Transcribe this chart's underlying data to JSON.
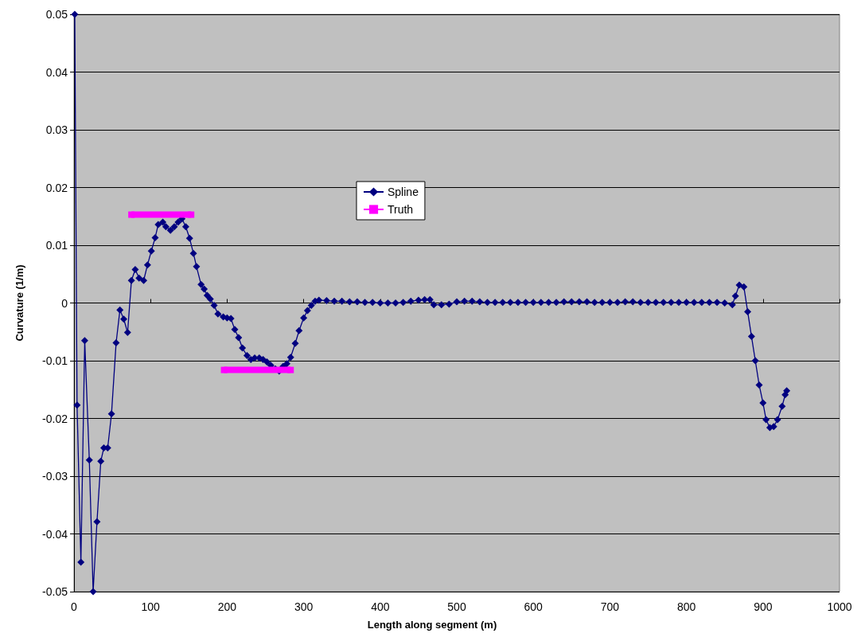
{
  "chart_data": {
    "type": "line",
    "xlabel": "Length along segment (m)",
    "ylabel": "Curvature (1/m)",
    "xlim": [
      0,
      1000
    ],
    "xticks": [
      0,
      100,
      200,
      300,
      400,
      500,
      600,
      700,
      800,
      900,
      1000
    ],
    "ylim": [
      -0.05,
      0.05
    ],
    "yticks": [
      -0.05,
      -0.04,
      -0.03,
      -0.02,
      -0.01,
      0,
      0.01,
      0.02,
      0.03,
      0.04,
      0.05
    ],
    "grid": "y",
    "legend": "top",
    "line_style": "solid",
    "series": [
      {
        "name": "Spline",
        "color": "#000080",
        "marker": "diamond",
        "x": [
          1,
          4,
          9,
          14,
          20,
          25,
          30,
          35,
          39,
          44,
          49,
          55,
          60,
          65,
          70,
          75,
          80,
          85,
          91,
          96,
          101,
          106,
          110,
          116,
          120,
          126,
          131,
          136,
          141,
          146,
          151,
          156,
          160,
          166,
          170,
          174,
          178,
          183,
          188,
          195,
          200,
          205,
          210,
          215,
          220,
          226,
          231,
          236,
          242,
          247,
          252,
          257,
          263,
          268,
          273,
          278,
          283,
          289,
          294,
          300,
          305,
          310,
          315,
          320,
          330,
          340,
          350,
          360,
          370,
          380,
          390,
          400,
          410,
          420,
          430,
          440,
          450,
          458,
          465,
          470,
          480,
          490,
          500,
          510,
          520,
          530,
          540,
          550,
          560,
          570,
          580,
          590,
          600,
          610,
          620,
          630,
          640,
          650,
          660,
          670,
          680,
          690,
          700,
          710,
          720,
          730,
          740,
          750,
          760,
          770,
          780,
          790,
          800,
          810,
          820,
          830,
          840,
          850,
          860,
          864,
          869,
          875,
          880,
          885,
          890,
          895,
          900,
          904,
          909,
          914,
          919,
          925,
          929,
          931
        ],
        "values": [
          0.05,
          -0.0177,
          -0.0449,
          -0.0065,
          -0.0272,
          -0.05,
          -0.0379,
          -0.0274,
          -0.0251,
          -0.0251,
          -0.0192,
          -0.0069,
          -0.0012,
          -0.0028,
          -0.0051,
          0.0039,
          0.0058,
          0.0043,
          0.0039,
          0.0066,
          0.009,
          0.0113,
          0.0136,
          0.014,
          0.0132,
          0.0126,
          0.0132,
          0.014,
          0.0146,
          0.0132,
          0.0112,
          0.0086,
          0.0063,
          0.0032,
          0.0024,
          0.0013,
          0.0007,
          -0.0004,
          -0.0019,
          -0.0024,
          -0.0026,
          -0.0027,
          -0.0046,
          -0.006,
          -0.0078,
          -0.0091,
          -0.0098,
          -0.0095,
          -0.0095,
          -0.0098,
          -0.0102,
          -0.0108,
          -0.0114,
          -0.0118,
          -0.011,
          -0.0105,
          -0.0094,
          -0.007,
          -0.0048,
          -0.0026,
          -0.0013,
          -0.0004,
          0.0003,
          0.0005,
          0.0004,
          0.0003,
          0.0003,
          0.0002,
          0.0002,
          0.0001,
          0.0001,
          0.0,
          0.0,
          0.0,
          0.0001,
          0.0003,
          0.0005,
          0.0006,
          0.0006,
          -0.0003,
          -0.0003,
          -0.0002,
          0.0002,
          0.0003,
          0.0003,
          0.0002,
          0.0001,
          0.0001,
          0.0001,
          0.0001,
          0.0001,
          0.0001,
          0.0001,
          0.0001,
          0.0001,
          0.0001,
          0.0002,
          0.0002,
          0.0002,
          0.0002,
          0.0001,
          0.0001,
          0.0001,
          0.0001,
          0.0002,
          0.0002,
          0.0001,
          0.0001,
          0.0001,
          0.0001,
          0.0001,
          0.0001,
          0.0001,
          0.0001,
          0.0001,
          0.0001,
          0.0001,
          0.0,
          -0.0003,
          0.0012,
          0.0031,
          0.0028,
          -0.0015,
          -0.0058,
          -0.01,
          -0.0142,
          -0.0173,
          -0.0202,
          -0.0216,
          -0.0214,
          -0.0202,
          -0.0179,
          -0.0159,
          -0.0152
        ]
      },
      {
        "name": "Truth",
        "color": "#ff00ff",
        "marker": "square",
        "x": [
          75,
          153,
          175,
          196,
          283
        ],
        "values": [
          0.0153,
          0.0153,
          null,
          -0.0116,
          -0.0116
        ]
      }
    ]
  }
}
